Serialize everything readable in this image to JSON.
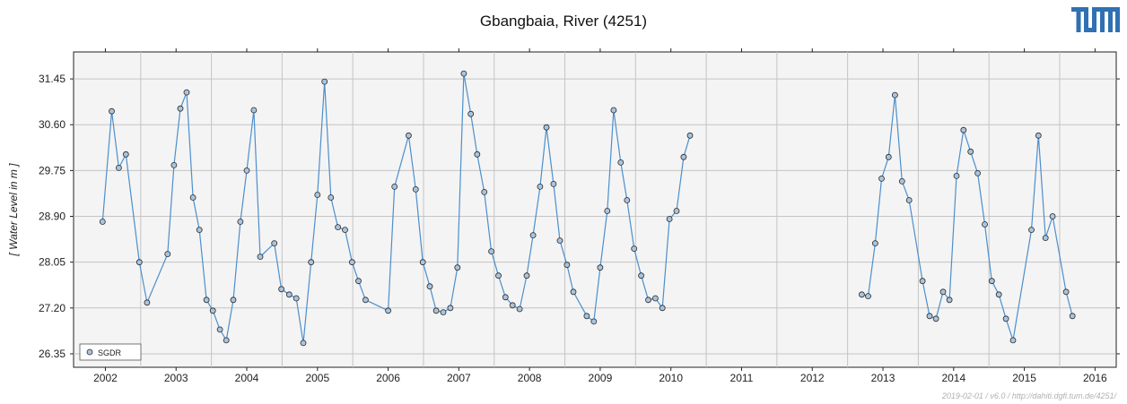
{
  "header": {
    "logo_text": "TUM",
    "logo_color": "#3070b3"
  },
  "footer": {
    "text": "2019-02-01 / v6.0 / http://dahiti.dgfi.tum.de/4251/"
  },
  "chart_data": {
    "type": "line",
    "title": "Gbangbaia, River (4251)",
    "xlabel": "",
    "ylabel": "[ Water Level in m ]",
    "xlim": [
      2001.55,
      2016.3
    ],
    "ylim": [
      26.1,
      31.95
    ],
    "x_ticks": [
      2002,
      2003,
      2004,
      2005,
      2006,
      2007,
      2008,
      2009,
      2010,
      2011,
      2012,
      2013,
      2014,
      2015,
      2016
    ],
    "x_tick_labels": [
      "2002",
      "2003",
      "2004",
      "2005",
      "2006",
      "2007",
      "2008",
      "2009",
      "2010",
      "2011",
      "2012",
      "2013",
      "2014",
      "2015",
      "2016"
    ],
    "y_ticks": [
      26.35,
      27.2,
      28.05,
      28.9,
      29.75,
      30.6,
      31.45
    ],
    "y_tick_labels": [
      "26.35",
      "27.20",
      "28.05",
      "28.90",
      "29.75",
      "30.60",
      "31.45"
    ],
    "grid": true,
    "legend": {
      "position": "bottom-left",
      "entries": [
        "SGDR"
      ]
    },
    "colors": {
      "line": "#4c8fcc",
      "marker_fill": "#aac4dd",
      "marker_edge": "#2a2a2a",
      "plot_bg": "#f4f4f4"
    },
    "series": [
      {
        "name": "SGDR",
        "segments": [
          [
            [
              2001.96,
              28.8
            ],
            [
              2002.09,
              30.85
            ],
            [
              2002.19,
              29.8
            ],
            [
              2002.29,
              30.05
            ],
            [
              2002.48,
              28.05
            ],
            [
              2002.59,
              27.3
            ],
            [
              2002.88,
              28.2
            ],
            [
              2002.97,
              29.85
            ],
            [
              2003.06,
              30.9
            ],
            [
              2003.15,
              31.2
            ],
            [
              2003.24,
              29.25
            ],
            [
              2003.33,
              28.65
            ],
            [
              2003.43,
              27.35
            ],
            [
              2003.52,
              27.15
            ],
            [
              2003.62,
              26.8
            ],
            [
              2003.71,
              26.6
            ],
            [
              2003.81,
              27.35
            ],
            [
              2003.91,
              28.8
            ],
            [
              2004.0,
              29.75
            ],
            [
              2004.1,
              30.87
            ],
            [
              2004.19,
              28.15
            ],
            [
              2004.39,
              28.4
            ],
            [
              2004.49,
              27.55
            ],
            [
              2004.6,
              27.45
            ],
            [
              2004.7,
              27.38
            ],
            [
              2004.8,
              26.55
            ],
            [
              2004.91,
              28.05
            ],
            [
              2005.0,
              29.3
            ],
            [
              2005.1,
              31.4
            ],
            [
              2005.19,
              29.25
            ],
            [
              2005.29,
              28.7
            ],
            [
              2005.39,
              28.65
            ],
            [
              2005.49,
              28.05
            ],
            [
              2005.58,
              27.7
            ],
            [
              2005.68,
              27.35
            ],
            [
              2006.0,
              27.15
            ],
            [
              2006.09,
              29.45
            ],
            [
              2006.29,
              30.4
            ],
            [
              2006.39,
              29.4
            ],
            [
              2006.49,
              28.05
            ],
            [
              2006.59,
              27.6
            ],
            [
              2006.68,
              27.15
            ],
            [
              2006.78,
              27.12
            ],
            [
              2006.88,
              27.2
            ],
            [
              2006.98,
              27.95
            ],
            [
              2007.07,
              31.55
            ],
            [
              2007.17,
              30.8
            ],
            [
              2007.26,
              30.05
            ],
            [
              2007.36,
              29.35
            ],
            [
              2007.46,
              28.25
            ],
            [
              2007.56,
              27.8
            ],
            [
              2007.66,
              27.4
            ],
            [
              2007.76,
              27.25
            ],
            [
              2007.86,
              27.18
            ],
            [
              2007.96,
              27.8
            ],
            [
              2008.05,
              28.55
            ],
            [
              2008.15,
              29.45
            ],
            [
              2008.24,
              30.55
            ],
            [
              2008.34,
              29.5
            ],
            [
              2008.43,
              28.45
            ],
            [
              2008.53,
              28.0
            ],
            [
              2008.62,
              27.5
            ],
            [
              2008.81,
              27.05
            ],
            [
              2008.91,
              26.95
            ],
            [
              2009.0,
              27.95
            ],
            [
              2009.1,
              29.0
            ],
            [
              2009.19,
              30.87
            ],
            [
              2009.29,
              29.9
            ],
            [
              2009.38,
              29.2
            ],
            [
              2009.48,
              28.3
            ],
            [
              2009.58,
              27.8
            ],
            [
              2009.68,
              27.35
            ],
            [
              2009.78,
              27.38
            ],
            [
              2009.88,
              27.2
            ],
            [
              2009.98,
              28.85
            ],
            [
              2010.08,
              29.0
            ],
            [
              2010.18,
              30.0
            ],
            [
              2010.27,
              30.4
            ]
          ],
          [
            [
              2012.7,
              27.45
            ],
            [
              2012.79,
              27.42
            ],
            [
              2012.89,
              28.4
            ],
            [
              2012.98,
              29.6
            ],
            [
              2013.08,
              30.0
            ],
            [
              2013.17,
              31.15
            ],
            [
              2013.27,
              29.55
            ],
            [
              2013.37,
              29.2
            ],
            [
              2013.56,
              27.7
            ],
            [
              2013.66,
              27.05
            ],
            [
              2013.75,
              27.0
            ],
            [
              2013.85,
              27.5
            ],
            [
              2013.94,
              27.35
            ],
            [
              2014.04,
              29.65
            ],
            [
              2014.14,
              30.5
            ],
            [
              2014.24,
              30.1
            ],
            [
              2014.34,
              29.7
            ],
            [
              2014.44,
              28.75
            ],
            [
              2014.54,
              27.7
            ],
            [
              2014.64,
              27.45
            ],
            [
              2014.74,
              27.0
            ],
            [
              2014.84,
              26.6
            ],
            [
              2015.1,
              28.65
            ],
            [
              2015.2,
              30.4
            ],
            [
              2015.3,
              28.5
            ],
            [
              2015.4,
              28.9
            ],
            [
              2015.59,
              27.5
            ],
            [
              2015.68,
              27.05
            ]
          ]
        ]
      }
    ]
  }
}
